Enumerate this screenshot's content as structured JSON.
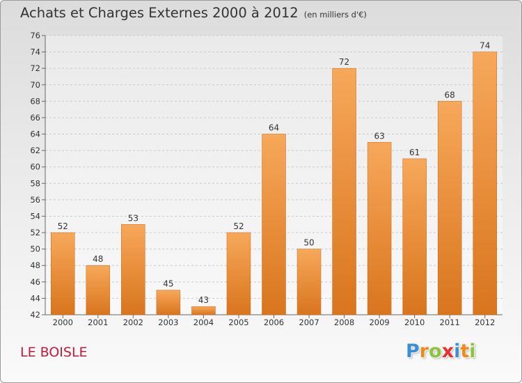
{
  "chart_data": {
    "type": "bar",
    "title": "Achats et Charges Externes 2000 à 2012",
    "subtitle": "(en milliers d'€)",
    "categories": [
      "2000",
      "2001",
      "2002",
      "2003",
      "2004",
      "2005",
      "2006",
      "2007",
      "2008",
      "2009",
      "2010",
      "2011",
      "2012"
    ],
    "values": [
      52,
      48,
      53,
      45,
      43,
      52,
      64,
      50,
      72,
      63,
      61,
      68,
      74
    ],
    "ylim": [
      42,
      76
    ],
    "yticks": [
      42,
      44,
      46,
      48,
      50,
      52,
      54,
      56,
      58,
      60,
      62,
      64,
      66,
      68,
      70,
      72,
      74,
      76
    ],
    "grid": true,
    "colors": {
      "bar_top": "#f7a85a",
      "bar_bottom": "#d9751e",
      "bar_edge": "#c76a18"
    }
  },
  "footer": {
    "place": "LE BOISLE",
    "logo": [
      "P",
      "r",
      "o",
      "x",
      "i",
      "t",
      "i"
    ],
    "logo_colors": [
      "#3b8fd8",
      "#f08a1c",
      "#8cc43c",
      "#e8312c",
      "#3b8fd8",
      "#f08a1c",
      "#8cc43c"
    ]
  }
}
